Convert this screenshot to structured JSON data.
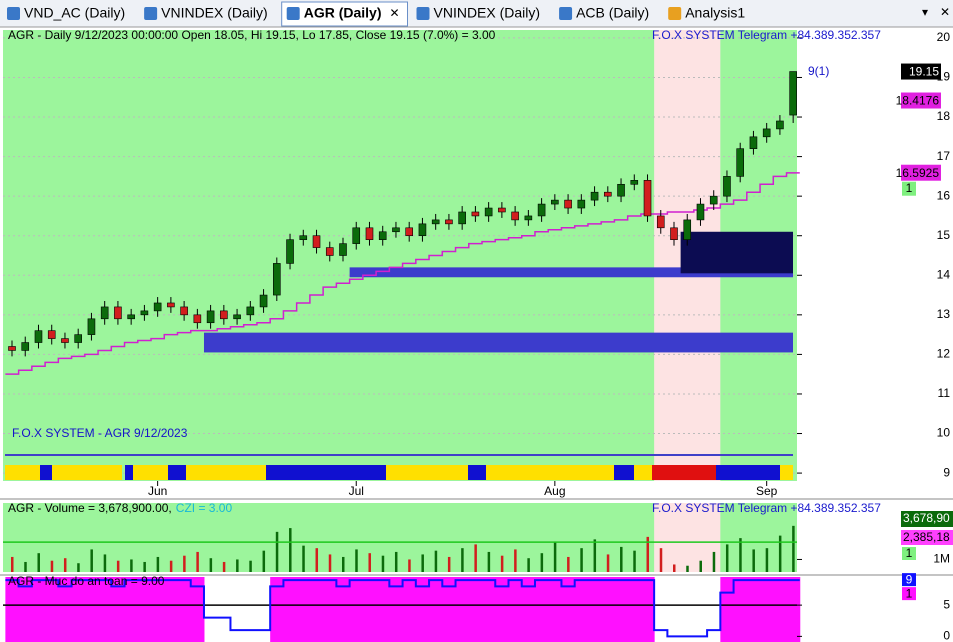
{
  "tabs": [
    "VND_AC (Daily)",
    "VNINDEX (Daily)",
    "AGR (Daily)",
    "VNINDEX (Daily)",
    "ACB (Daily)",
    "Analysis1"
  ],
  "active_tab": 2,
  "chart_data": [
    {
      "type": "candlestick",
      "title": "AGR - Daily 9/12/2023 00:00:00 Open 18.05, Hi 19.15, Lo 17.85, Close 19.15 (7.0%) = 3.00",
      "annotations": [
        "F.O.X SYSTEM Telegram +84.389.352.357",
        "9(1)",
        "F.O.X SYSTEM - AGR 9/12/2023"
      ],
      "categories": [
        null,
        null,
        null,
        null,
        null,
        null,
        null,
        null,
        null,
        null,
        null,
        "Jun",
        null,
        null,
        null,
        null,
        null,
        null,
        null,
        null,
        null,
        null,
        null,
        null,
        null,
        null,
        "Jul",
        null,
        null,
        null,
        null,
        null,
        null,
        null,
        null,
        null,
        null,
        null,
        null,
        null,
        null,
        "Aug",
        null,
        null,
        null,
        null,
        null,
        null,
        null,
        null,
        null,
        null,
        null,
        null,
        null,
        null,
        null,
        "Sep",
        null,
        null
      ],
      "open": [
        12.2,
        12.1,
        12.3,
        12.6,
        12.4,
        12.3,
        12.5,
        12.9,
        13.2,
        12.9,
        13.0,
        13.1,
        13.3,
        13.2,
        13.0,
        12.8,
        13.1,
        12.9,
        13.0,
        13.2,
        13.5,
        14.3,
        14.9,
        15.0,
        14.7,
        14.5,
        14.8,
        15.2,
        14.9,
        15.1,
        15.2,
        15.0,
        15.3,
        15.4,
        15.3,
        15.6,
        15.5,
        15.7,
        15.6,
        15.4,
        15.5,
        15.8,
        15.9,
        15.7,
        15.9,
        16.1,
        16.0,
        16.3,
        16.4,
        15.5,
        15.2,
        14.9,
        15.4,
        15.8,
        16.0,
        16.5,
        17.2,
        17.5,
        17.7,
        18.05
      ],
      "high": [
        12.35,
        12.45,
        12.75,
        12.75,
        12.55,
        12.65,
        13.05,
        13.35,
        13.35,
        13.15,
        13.25,
        13.45,
        13.45,
        13.35,
        13.15,
        13.25,
        13.25,
        13.15,
        13.35,
        13.65,
        14.45,
        15.05,
        15.15,
        15.15,
        14.85,
        14.95,
        15.35,
        15.35,
        15.25,
        15.35,
        15.35,
        15.45,
        15.55,
        15.55,
        15.75,
        15.75,
        15.85,
        15.85,
        15.75,
        15.65,
        15.95,
        16.05,
        16.05,
        16.05,
        16.25,
        16.25,
        16.45,
        16.55,
        16.55,
        15.65,
        15.35,
        15.55,
        15.95,
        16.15,
        16.65,
        17.35,
        17.65,
        17.85,
        18.05,
        19.15
      ],
      "low": [
        11.95,
        11.95,
        12.15,
        12.25,
        12.15,
        12.15,
        12.35,
        12.75,
        12.75,
        12.75,
        12.85,
        12.95,
        13.05,
        12.85,
        12.65,
        12.65,
        12.75,
        12.75,
        12.85,
        13.05,
        13.35,
        14.15,
        14.75,
        14.55,
        14.35,
        14.35,
        14.65,
        14.75,
        14.75,
        14.95,
        14.85,
        14.85,
        15.15,
        15.15,
        15.15,
        15.35,
        15.35,
        15.45,
        15.25,
        15.25,
        15.35,
        15.65,
        15.55,
        15.55,
        15.75,
        15.85,
        15.85,
        16.15,
        15.35,
        15.05,
        14.75,
        14.75,
        15.25,
        15.65,
        15.85,
        16.35,
        17.05,
        17.35,
        17.55,
        17.85
      ],
      "close": [
        12.1,
        12.3,
        12.6,
        12.4,
        12.3,
        12.5,
        12.9,
        13.2,
        12.9,
        13.0,
        13.1,
        13.3,
        13.2,
        13.0,
        12.8,
        13.1,
        12.9,
        13.0,
        13.2,
        13.5,
        14.3,
        14.9,
        15.0,
        14.7,
        14.5,
        14.8,
        15.2,
        14.9,
        15.1,
        15.2,
        15.0,
        15.3,
        15.4,
        15.3,
        15.6,
        15.5,
        15.7,
        15.6,
        15.4,
        15.5,
        15.8,
        15.9,
        15.7,
        15.9,
        16.1,
        16.0,
        16.3,
        16.4,
        15.5,
        15.2,
        14.9,
        15.4,
        15.8,
        16.0,
        16.5,
        17.2,
        17.5,
        17.7,
        17.9,
        19.15
      ],
      "ma": {
        "color": "#d020d0",
        "values": [
          11.5,
          11.6,
          11.7,
          11.8,
          11.9,
          11.95,
          12.0,
          12.1,
          12.2,
          12.3,
          12.35,
          12.4,
          12.5,
          12.55,
          12.6,
          12.6,
          12.65,
          12.7,
          12.75,
          12.8,
          12.9,
          13.1,
          13.3,
          13.5,
          13.7,
          13.8,
          13.9,
          14.0,
          14.1,
          14.2,
          14.3,
          14.4,
          14.5,
          14.6,
          14.7,
          14.8,
          14.85,
          14.9,
          14.95,
          15.0,
          15.1,
          15.15,
          15.2,
          15.25,
          15.3,
          15.35,
          15.4,
          15.5,
          15.55,
          15.55,
          15.6,
          15.6,
          15.65,
          15.7,
          15.8,
          15.9,
          16.1,
          16.3,
          16.5,
          16.59
        ]
      },
      "up_color": "#0b6b0b",
      "down_color": "#d21e1e",
      "background": "#9cf59c",
      "highlight": {
        "start": 49,
        "end": 53,
        "color": "#fde3e3"
      },
      "zones": [
        {
          "low": 12.05,
          "high": 12.55,
          "start": 15,
          "color": "#3c3ccc"
        },
        {
          "low": 13.95,
          "high": 14.2,
          "start": 26,
          "color": "#3c3ccc"
        },
        {
          "low": 14.05,
          "high": 15.1,
          "start": 51,
          "color": "#0c0c52"
        }
      ],
      "ylim": [
        8.8,
        20.2
      ],
      "yticks": [
        9,
        10,
        11,
        12,
        13,
        14,
        15,
        16,
        17,
        18,
        19,
        20
      ],
      "price_labels": [
        {
          "value": 19.15,
          "label": "19.15",
          "color": "#000000"
        },
        {
          "value": 18.4176,
          "label": "18.4176",
          "color": "#e020e0"
        },
        {
          "value": 16.5925,
          "label": "16.5925",
          "color": "#e020e0"
        }
      ],
      "signal_count": 1
    },
    {
      "type": "bar",
      "title": "AGR - Volume = 3,678,900.00,",
      "subtitle": "CZI = 3.00",
      "annotation": "F.O.X SYSTEM Telegram +84.389.352.357",
      "values": [
        1.2,
        0.8,
        1.5,
        0.9,
        1.1,
        0.7,
        1.8,
        1.4,
        0.9,
        1.0,
        0.8,
        1.2,
        0.9,
        1.3,
        1.6,
        1.1,
        0.8,
        1.0,
        0.9,
        1.7,
        3.2,
        3.5,
        2.1,
        1.9,
        1.4,
        1.2,
        1.8,
        1.5,
        1.3,
        1.6,
        1.0,
        1.4,
        1.7,
        1.2,
        1.9,
        2.2,
        1.6,
        1.3,
        1.8,
        1.1,
        1.5,
        2.4,
        1.2,
        1.9,
        2.6,
        1.4,
        2.0,
        1.7,
        2.8,
        1.9,
        0.6,
        0.5,
        0.9,
        1.6,
        2.2,
        2.7,
        1.8,
        1.9,
        2.9,
        3.6789
      ],
      "last_label": {
        "value": 3.6789,
        "label": "3,678,90"
      },
      "avg_label": {
        "value": 2.38518,
        "label": "2,385,18"
      },
      "signal_count": 1,
      "ylim": [
        0,
        5.5
      ],
      "yticks": [
        {
          "value": 1,
          "label": "1M"
        }
      ]
    },
    {
      "type": "step",
      "title": "AGR - Muc do an toan = 9.00",
      "values": [
        9,
        8,
        9,
        9,
        8,
        9,
        9,
        9,
        8,
        9,
        9,
        9,
        9,
        9,
        8,
        3,
        3,
        1,
        1,
        1,
        8,
        9,
        9,
        9,
        9,
        8,
        9,
        9,
        9,
        8,
        9,
        8,
        9,
        8,
        9,
        9,
        9,
        8,
        9,
        8,
        9,
        9,
        8,
        9,
        9,
        9,
        9,
        9,
        9,
        1,
        0,
        0,
        0,
        1,
        7,
        9,
        9,
        9,
        9,
        9
      ],
      "color": "#1010ff",
      "fill": "#ff10ff",
      "signal": 1,
      "ylim": [
        -0.9,
        9.5
      ],
      "yticks": [
        0,
        5
      ]
    }
  ]
}
